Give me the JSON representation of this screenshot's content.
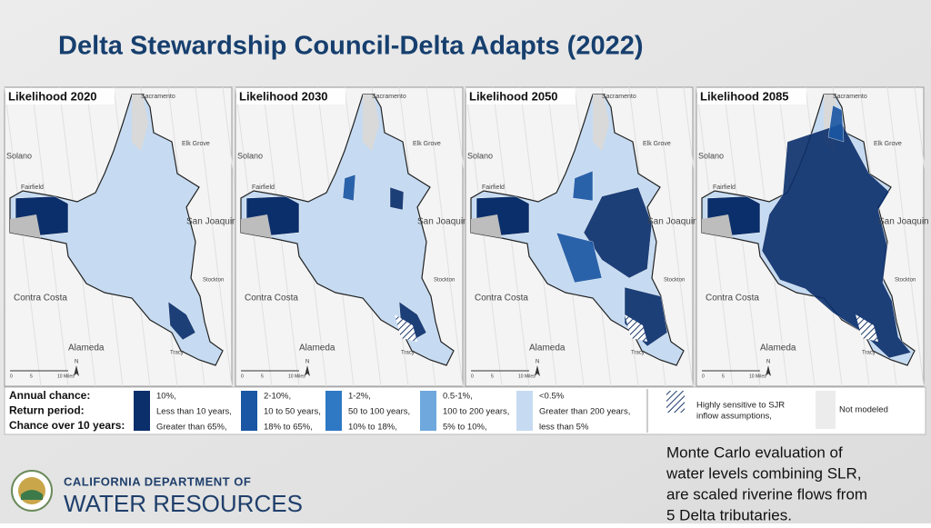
{
  "header": {
    "title": "Delta Stewardship Council-Delta Adapts (2022)"
  },
  "panels": [
    {
      "title": "Likelihood 2020"
    },
    {
      "title": "Likelihood 2030"
    },
    {
      "title": "Likelihood 2050"
    },
    {
      "title": "Likelihood 2085"
    }
  ],
  "map_labels": {
    "sacramento": "Sacramento",
    "elk_grove": "Elk Grove",
    "solano": "Solano",
    "fairfield": "Fairfield",
    "san_joaquin": "San Joaquin",
    "contra_costa": "Contra Costa",
    "alameda": "Alameda",
    "stockton": "Stockton",
    "tracy": "Tracy",
    "scale": [
      "0",
      "5",
      "10 Miles"
    ],
    "north": "N"
  },
  "legend": {
    "headings": [
      "Annual chance:",
      "Return period:",
      "Chance over 10 years:"
    ],
    "items": [
      {
        "color": "#0b2f6b",
        "lines": [
          "10%,",
          "Less than 10 years,",
          "Greater than 65%,"
        ]
      },
      {
        "color": "#1a56a3",
        "lines": [
          "2-10%,",
          "10 to 50 years,",
          "18% to 65%,"
        ]
      },
      {
        "color": "#2f78c4",
        "lines": [
          "1-2%,",
          "50 to 100 years,",
          "10% to 18%,"
        ]
      },
      {
        "color": "#6ea8dd",
        "lines": [
          "0.5-1%,",
          "100 to 200 years,",
          "5% to 10%,"
        ]
      },
      {
        "color": "#c6dbf1",
        "lines": [
          "<0.5%",
          "Greater than 200 years,",
          "less than 5%"
        ]
      }
    ],
    "hatch": [
      "Highly sensitive to SJR",
      "inflow assumptions,"
    ],
    "not_modeled": "Not modeled"
  },
  "logo": {
    "line1": "CALIFORNIA DEPARTMENT OF",
    "line2": "WATER RESOURCES"
  },
  "description": [
    "Monte Carlo evaluation of",
    "water levels combining SLR,",
    "are scaled riverine flows from",
    "5 Delta tributaries."
  ]
}
